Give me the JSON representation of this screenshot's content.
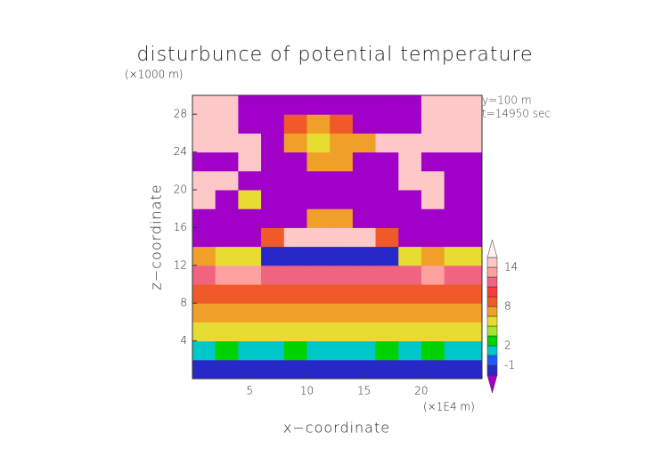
{
  "chart_data": {
    "type": "contour",
    "title": "disturbunce of potential temperature",
    "y_unit": "(×1000 m)",
    "x_unit": "(×1E4 m)",
    "notes": [
      "y=100 m",
      "t=14950 sec"
    ],
    "x_label": "x−coordinate",
    "y_label": "z−coordinate",
    "xlim": [
      0,
      25.3
    ],
    "ylim": [
      0,
      30
    ],
    "xticks": [
      5,
      10,
      15,
      20
    ],
    "yticks": [
      4,
      8,
      12,
      16,
      20,
      24,
      28
    ],
    "x": [
      1,
      3,
      5,
      7,
      9,
      11,
      13,
      15,
      17,
      19,
      21,
      23
    ],
    "z": [
      1,
      3,
      5,
      7,
      9,
      11,
      13,
      15,
      17,
      19,
      21,
      23,
      25,
      27,
      29
    ],
    "values": [
      [
        -1.5,
        -1.5,
        -1.5,
        -1.5,
        -1.5,
        -1.5,
        -1.5,
        -1.5,
        -1.5,
        -1.5,
        -1.5,
        -1.5
      ],
      [
        1.5,
        2,
        1.5,
        1.5,
        2,
        1.5,
        1.5,
        1.5,
        2,
        1.5,
        2,
        1.5
      ],
      [
        4,
        5,
        5,
        5,
        5,
        5,
        5,
        5,
        5,
        5,
        5,
        4
      ],
      [
        7,
        7,
        7,
        7,
        7,
        7,
        7,
        7,
        7,
        7,
        7,
        7
      ],
      [
        9,
        9,
        9,
        9,
        9,
        9,
        9,
        9,
        9,
        9.5,
        9,
        9
      ],
      [
        11.5,
        12,
        12,
        11,
        11,
        11,
        11,
        11,
        11,
        11,
        12,
        11.5
      ],
      [
        6,
        5,
        5,
        -1.5,
        -1.5,
        -1.5,
        -1.5,
        -1.5,
        -1.5,
        5,
        6,
        5
      ],
      [
        -3,
        -3,
        -3,
        8,
        15,
        15,
        15,
        15,
        8,
        -3,
        -3,
        -3
      ],
      [
        -3,
        -3,
        -3,
        -3,
        -3,
        6,
        6,
        -3,
        -3,
        -3,
        -3,
        -3
      ],
      [
        15,
        -3,
        4,
        -3,
        -3,
        -3,
        -3,
        -3,
        -3,
        -3,
        15,
        -3
      ],
      [
        15,
        15,
        -3,
        -3,
        -3,
        -3,
        -3,
        -3,
        -3,
        15,
        15,
        -3
      ],
      [
        -3,
        -3,
        15,
        -3,
        -3,
        6,
        6,
        -3,
        -3,
        15,
        -3,
        -3
      ],
      [
        15,
        15,
        15,
        -3,
        6,
        4,
        6,
        6,
        15,
        15,
        15,
        15
      ],
      [
        15,
        15,
        -3,
        -3,
        8,
        6,
        8,
        -3,
        -3,
        -3,
        15,
        15
      ],
      [
        15,
        15,
        -3,
        -3,
        -3,
        -3,
        -3,
        -3,
        -3,
        -3,
        15,
        15
      ]
    ],
    "levels": [
      -2,
      -1,
      1,
      2,
      3,
      4,
      6,
      8,
      10,
      11,
      12,
      14,
      16
    ],
    "colors": [
      "#a000c8",
      "#2828c8",
      "#1e5aff",
      "#00c8c8",
      "#00d200",
      "#a0e632",
      "#e6dc32",
      "#f0a028",
      "#f05a28",
      "#fa3c3c",
      "#f06482",
      "#ffa0a0",
      "#ffc8c8",
      "#fff0f0"
    ],
    "colorbar_ticks": [
      -1,
      2,
      8,
      14
    ]
  }
}
